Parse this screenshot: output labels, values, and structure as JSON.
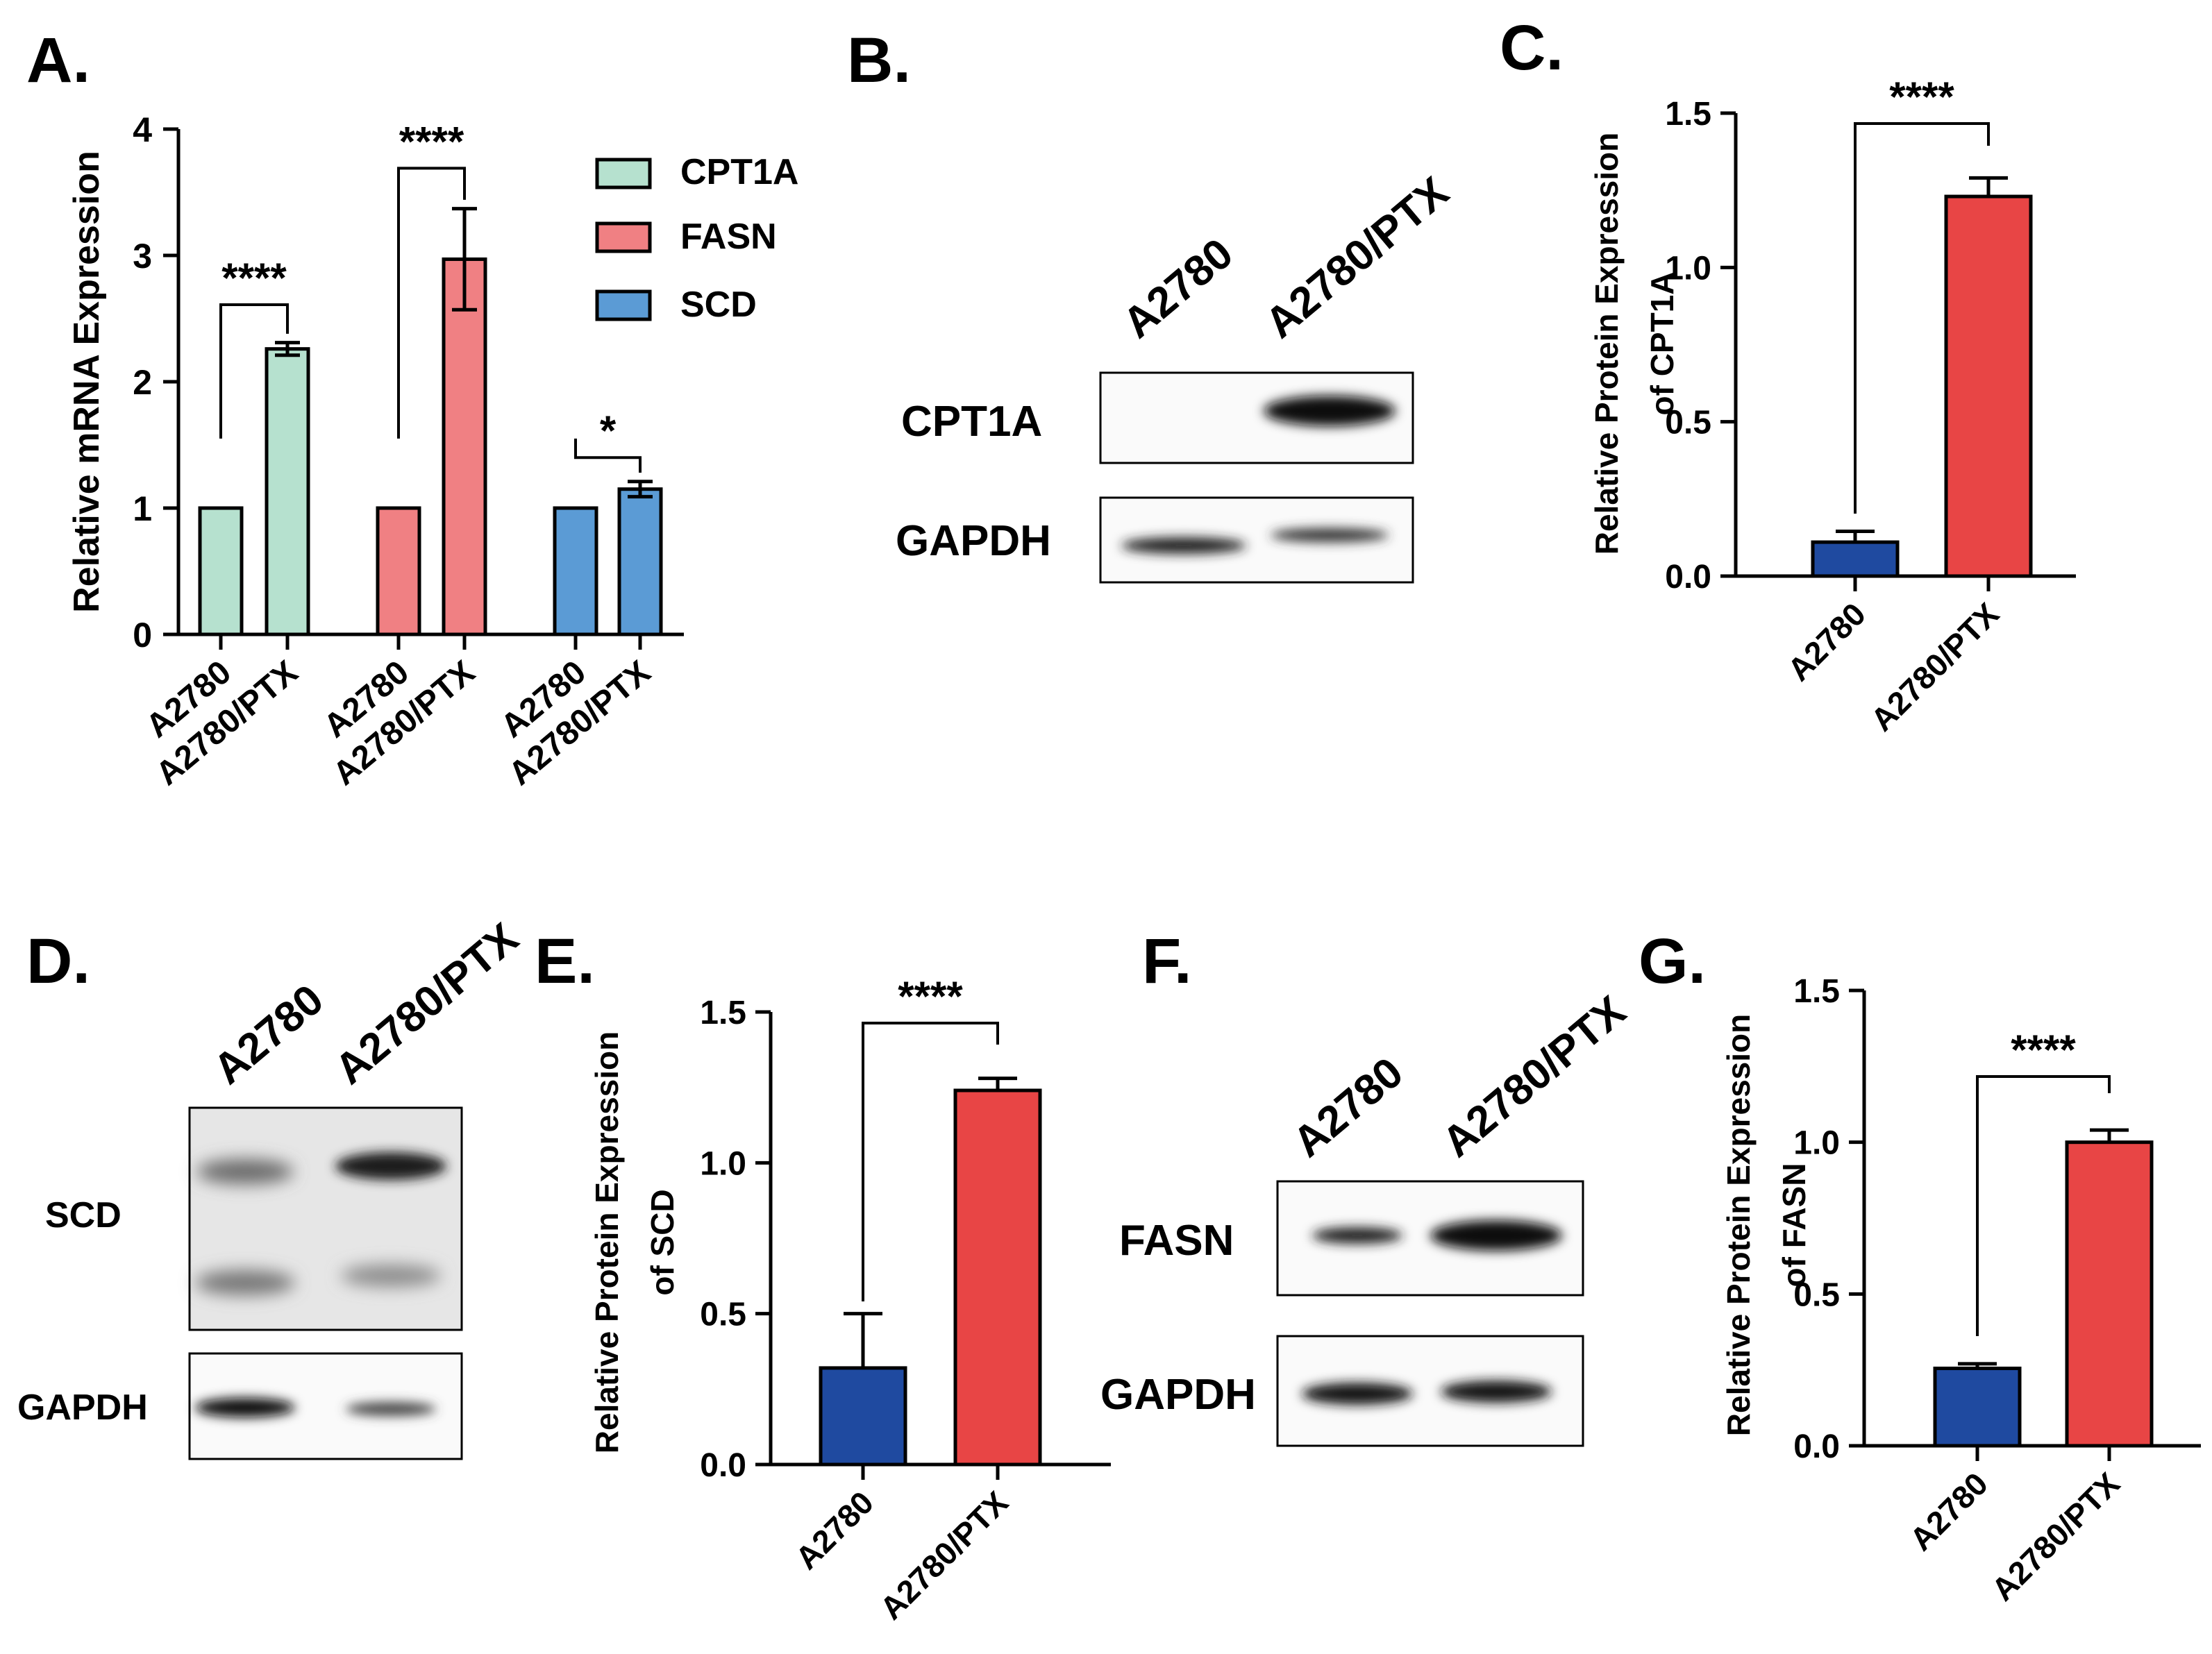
{
  "panels": {
    "A": {
      "label": "A."
    },
    "B": {
      "label": "B."
    },
    "C": {
      "label": "C."
    },
    "D": {
      "label": "D."
    },
    "E": {
      "label": "E."
    },
    "F": {
      "label": "F."
    },
    "G": {
      "label": "G."
    }
  },
  "colors": {
    "cpt1a_mrna": "#b6e1cf",
    "fasn_mrna": "#f08083",
    "scd_mrna": "#5b9bd5",
    "a2780_protein": "#1f4aa0",
    "ptx_protein": "#e84545"
  },
  "blots": {
    "B": {
      "lanes": [
        "A2780",
        "A2780/PTX"
      ],
      "rows": [
        "CPT1A",
        "GAPDH"
      ]
    },
    "D": {
      "lanes": [
        "A2780",
        "A2780/PTX"
      ],
      "rows": [
        "SCD",
        "GAPDH"
      ]
    },
    "F": {
      "lanes": [
        "A2780",
        "A2780/PTX"
      ],
      "rows": [
        "FASN",
        "GAPDH"
      ]
    }
  },
  "chart_data": [
    {
      "panel": "A",
      "type": "bar",
      "ylabel": "Relative mRNA Expression",
      "ylim": [
        0,
        4
      ],
      "yticks": [
        "0",
        "1",
        "2",
        "3",
        "4"
      ],
      "categories": [
        "A2780",
        "A2780/PTX"
      ],
      "legend": [
        "CPT1A",
        "FASN",
        "SCD"
      ],
      "legend_position": "top-right",
      "groups": [
        {
          "name": "CPT1A",
          "values": [
            1.0,
            2.26
          ],
          "errors": [
            0,
            0.05
          ],
          "significance": "****"
        },
        {
          "name": "FASN",
          "values": [
            1.0,
            2.97
          ],
          "errors": [
            0,
            0.4
          ],
          "significance": "****"
        },
        {
          "name": "SCD",
          "values": [
            1.0,
            1.15
          ],
          "errors": [
            0,
            0.06
          ],
          "significance": "*"
        }
      ]
    },
    {
      "panel": "C",
      "type": "bar",
      "ylabel": [
        "Relative Protein Expression",
        "of CPT1A"
      ],
      "ylim": [
        0,
        1.5
      ],
      "yticks": [
        "0.0",
        "0.5",
        "1.0",
        "1.5"
      ],
      "categories": [
        "A2780",
        "A2780/PTX"
      ],
      "values": [
        0.11,
        1.23
      ],
      "errors": [
        0.035,
        0.06
      ],
      "significance": "****"
    },
    {
      "panel": "E",
      "type": "bar",
      "ylabel": [
        "Relative Protein Expression",
        "of SCD"
      ],
      "ylim": [
        0,
        1.5
      ],
      "yticks": [
        "0.0",
        "0.5",
        "1.0",
        "1.5"
      ],
      "categories": [
        "A2780",
        "A2780/PTX"
      ],
      "values": [
        0.32,
        1.24
      ],
      "errors": [
        0.18,
        0.04
      ],
      "significance": "****"
    },
    {
      "panel": "G",
      "type": "bar",
      "ylabel": [
        "Relative Protein Expression",
        "of FASN"
      ],
      "ylim": [
        0,
        1.5
      ],
      "yticks": [
        "0.0",
        "0.5",
        "1.0",
        "1.5"
      ],
      "categories": [
        "A2780",
        "A2780/PTX"
      ],
      "values": [
        0.255,
        1.0
      ],
      "errors": [
        0.015,
        0.04
      ],
      "significance": "****"
    }
  ]
}
